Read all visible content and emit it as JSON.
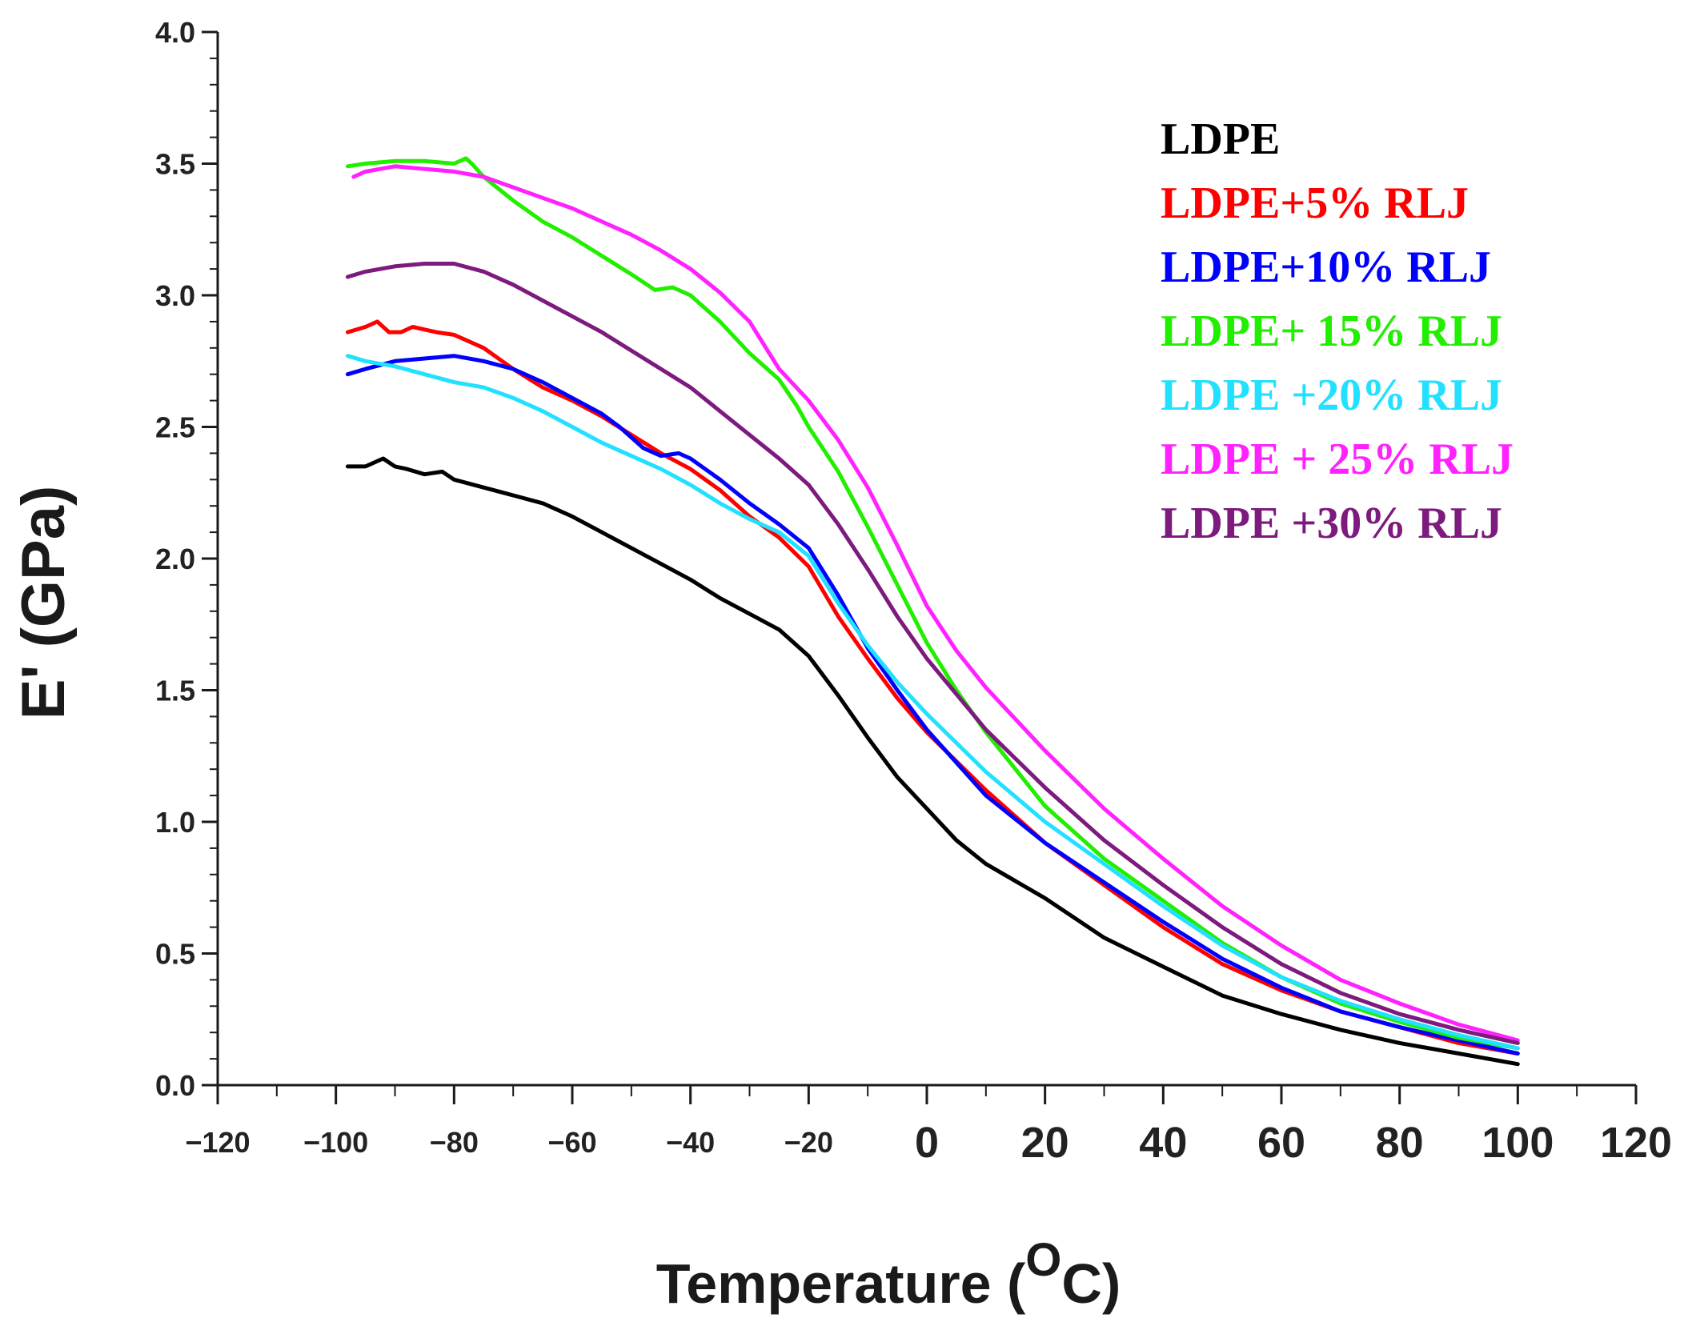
{
  "chart_data": {
    "type": "line",
    "title": "",
    "xlabel_main": "Temperature (",
    "xlabel_sup": "O",
    "xlabel_unit": "C)",
    "ylabel": "E' (GPa)",
    "xlim": [
      -120,
      120
    ],
    "ylim": [
      0,
      4
    ],
    "x_ticks": [
      -120,
      -100,
      -80,
      -60,
      -40,
      -20,
      0,
      20,
      40,
      60,
      80,
      100,
      120
    ],
    "x_tick_labels": [
      "−120",
      "−100",
      "−80",
      "−60",
      "−40",
      "−20",
      "0",
      "20",
      "40",
      "60",
      "80",
      "100",
      "120"
    ],
    "y_ticks": [
      0,
      0.5,
      1,
      1.5,
      2,
      2.5,
      3,
      3.5,
      4
    ],
    "y_tick_labels": [
      "0.0",
      "0.5",
      "1.0",
      "1.5",
      "2.0",
      "2.5",
      "3.0",
      "3.5",
      "4.0"
    ],
    "grid": false,
    "legend_position": "top-right",
    "series": [
      {
        "name": "LDPE",
        "color": "#000000",
        "x": [
          -98,
          -95,
          -92,
          -90,
          -88,
          -85,
          -82,
          -80,
          -75,
          -70,
          -65,
          -60,
          -55,
          -50,
          -45,
          -40,
          -35,
          -30,
          -25,
          -20,
          -15,
          -10,
          -5,
          0,
          5,
          10,
          20,
          30,
          40,
          50,
          60,
          70,
          80,
          90,
          100
        ],
        "y": [
          2.35,
          2.35,
          2.38,
          2.35,
          2.34,
          2.32,
          2.33,
          2.3,
          2.27,
          2.24,
          2.21,
          2.16,
          2.1,
          2.04,
          1.98,
          1.92,
          1.85,
          1.79,
          1.73,
          1.63,
          1.48,
          1.32,
          1.17,
          1.05,
          0.93,
          0.84,
          0.71,
          0.56,
          0.45,
          0.34,
          0.27,
          0.21,
          0.16,
          0.12,
          0.08
        ]
      },
      {
        "name": "LDPE+5% RLJ",
        "color": "#ff0000",
        "x": [
          -98,
          -95,
          -93,
          -91,
          -89,
          -87,
          -85,
          -83,
          -80,
          -75,
          -70,
          -65,
          -60,
          -55,
          -50,
          -45,
          -40,
          -35,
          -30,
          -25,
          -20,
          -15,
          -10,
          -5,
          0,
          10,
          20,
          30,
          40,
          50,
          60,
          70,
          80,
          90,
          100
        ],
        "y": [
          2.86,
          2.88,
          2.9,
          2.86,
          2.86,
          2.88,
          2.87,
          2.86,
          2.85,
          2.8,
          2.72,
          2.65,
          2.6,
          2.54,
          2.47,
          2.4,
          2.34,
          2.26,
          2.16,
          2.08,
          1.97,
          1.78,
          1.62,
          1.47,
          1.34,
          1.12,
          0.92,
          0.76,
          0.6,
          0.46,
          0.36,
          0.28,
          0.22,
          0.16,
          0.12
        ]
      },
      {
        "name": "LDPE+10% RLJ",
        "color": "#0000ff",
        "x": [
          -98,
          -95,
          -90,
          -85,
          -80,
          -75,
          -70,
          -65,
          -60,
          -55,
          -52,
          -48,
          -45,
          -42,
          -40,
          -35,
          -30,
          -25,
          -20,
          -15,
          -10,
          -5,
          0,
          10,
          20,
          30,
          40,
          50,
          60,
          70,
          80,
          90,
          100
        ],
        "y": [
          2.7,
          2.72,
          2.75,
          2.76,
          2.77,
          2.75,
          2.72,
          2.67,
          2.61,
          2.55,
          2.5,
          2.42,
          2.39,
          2.4,
          2.38,
          2.3,
          2.21,
          2.13,
          2.04,
          1.86,
          1.66,
          1.5,
          1.35,
          1.1,
          0.92,
          0.77,
          0.62,
          0.48,
          0.37,
          0.28,
          0.22,
          0.17,
          0.12
        ]
      },
      {
        "name": "LDPE+ 15% RLJ",
        "color": "#22ee00",
        "x": [
          -98,
          -95,
          -90,
          -85,
          -80,
          -78,
          -77,
          -75,
          -70,
          -65,
          -60,
          -55,
          -50,
          -46,
          -43,
          -40,
          -35,
          -30,
          -25,
          -22,
          -20,
          -15,
          -10,
          -5,
          0,
          5,
          10,
          20,
          30,
          40,
          50,
          60,
          70,
          80,
          90,
          100
        ],
        "y": [
          3.49,
          3.5,
          3.51,
          3.51,
          3.5,
          3.52,
          3.5,
          3.45,
          3.36,
          3.28,
          3.22,
          3.15,
          3.08,
          3.02,
          3.03,
          3.0,
          2.9,
          2.78,
          2.68,
          2.58,
          2.5,
          2.33,
          2.12,
          1.9,
          1.68,
          1.5,
          1.34,
          1.06,
          0.86,
          0.7,
          0.54,
          0.41,
          0.31,
          0.24,
          0.18,
          0.14
        ]
      },
      {
        "name": "LDPE +20% RLJ",
        "color": "#22e0ff",
        "x": [
          -98,
          -95,
          -90,
          -85,
          -80,
          -75,
          -70,
          -65,
          -60,
          -55,
          -50,
          -45,
          -40,
          -35,
          -30,
          -25,
          -20,
          -15,
          -10,
          -5,
          0,
          10,
          20,
          30,
          40,
          50,
          60,
          70,
          80,
          90,
          100
        ],
        "y": [
          2.77,
          2.75,
          2.73,
          2.7,
          2.67,
          2.65,
          2.61,
          2.56,
          2.5,
          2.44,
          2.39,
          2.34,
          2.28,
          2.21,
          2.15,
          2.1,
          2.01,
          1.83,
          1.67,
          1.53,
          1.41,
          1.19,
          1.0,
          0.84,
          0.68,
          0.53,
          0.41,
          0.32,
          0.25,
          0.19,
          0.14
        ]
      },
      {
        "name": "LDPE + 25% RLJ",
        "color": "#ff22ff",
        "x": [
          -97,
          -95,
          -90,
          -85,
          -80,
          -75,
          -70,
          -65,
          -60,
          -55,
          -50,
          -45,
          -40,
          -35,
          -30,
          -25,
          -20,
          -15,
          -10,
          -5,
          0,
          5,
          10,
          20,
          30,
          40,
          50,
          60,
          70,
          80,
          90,
          100
        ],
        "y": [
          3.45,
          3.47,
          3.49,
          3.48,
          3.47,
          3.45,
          3.41,
          3.37,
          3.33,
          3.28,
          3.23,
          3.17,
          3.1,
          3.01,
          2.9,
          2.72,
          2.6,
          2.45,
          2.27,
          2.05,
          1.82,
          1.65,
          1.51,
          1.27,
          1.05,
          0.86,
          0.68,
          0.53,
          0.4,
          0.31,
          0.23,
          0.17
        ]
      },
      {
        "name": "LDPE +30% RLJ",
        "color": "#7d1a7d",
        "x": [
          -98,
          -95,
          -90,
          -85,
          -80,
          -75,
          -70,
          -65,
          -60,
          -55,
          -50,
          -45,
          -40,
          -35,
          -30,
          -25,
          -20,
          -15,
          -10,
          -5,
          0,
          10,
          20,
          30,
          40,
          50,
          60,
          70,
          80,
          90,
          100
        ],
        "y": [
          3.07,
          3.09,
          3.11,
          3.12,
          3.12,
          3.09,
          3.04,
          2.98,
          2.92,
          2.86,
          2.79,
          2.72,
          2.65,
          2.56,
          2.47,
          2.38,
          2.28,
          2.13,
          1.96,
          1.78,
          1.62,
          1.35,
          1.13,
          0.93,
          0.76,
          0.6,
          0.46,
          0.35,
          0.27,
          0.21,
          0.16
        ]
      }
    ]
  }
}
